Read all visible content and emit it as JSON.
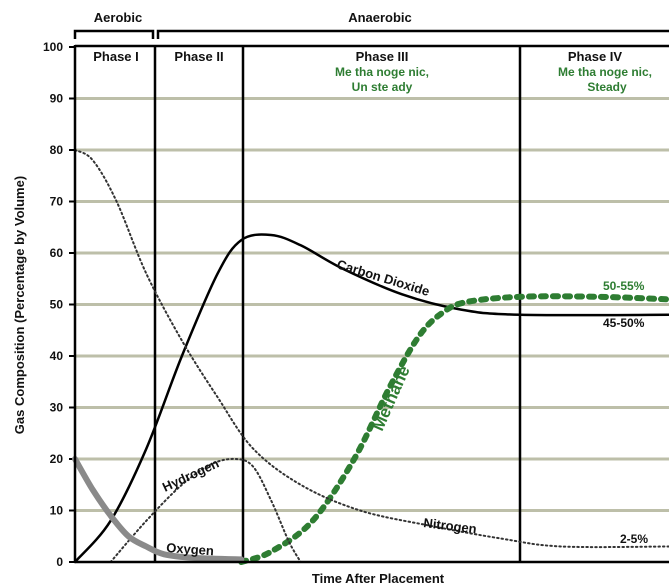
{
  "chart_data": {
    "type": "line",
    "ylabel": "Gas Composition (Percentage by Volume)",
    "xlabel": "Time After Placement",
    "ylim": [
      0,
      100
    ],
    "y_ticks": [
      "0",
      "10",
      "20",
      "30",
      "40",
      "50",
      "60",
      "70",
      "80",
      "90",
      "100"
    ],
    "grid": true,
    "brackets": [
      "Aerobic",
      "Anaerobic"
    ],
    "phases": [
      {
        "title": "Phase I",
        "sub": []
      },
      {
        "title": "Phase II",
        "sub": []
      },
      {
        "title": "Phase III",
        "sub": [
          "Me tha noge nic,",
          "Un ste ady"
        ]
      },
      {
        "title": "Phase IV",
        "sub": [
          "Me tha noge nic,",
          "Steady"
        ]
      }
    ],
    "series": [
      {
        "name": "Carbon Dioxide",
        "style": "solid",
        "color": "#000000",
        "points": [
          [
            0,
            0
          ],
          [
            6,
            8
          ],
          [
            12,
            22
          ],
          [
            18,
            40
          ],
          [
            24,
            56
          ],
          [
            28,
            62.5
          ],
          [
            33,
            63.5
          ],
          [
            38,
            61.5
          ],
          [
            45,
            57
          ],
          [
            55,
            52
          ],
          [
            65,
            49
          ],
          [
            75,
            48
          ],
          [
            100,
            48
          ]
        ]
      },
      {
        "name": "Methane",
        "style": "dashed",
        "color": "#2e7d32",
        "points": [
          [
            28,
            0
          ],
          [
            33,
            2
          ],
          [
            40,
            8
          ],
          [
            47,
            20
          ],
          [
            53,
            34
          ],
          [
            58,
            44
          ],
          [
            62,
            48.5
          ],
          [
            66,
            50.5
          ],
          [
            75,
            51.5
          ],
          [
            88,
            51.5
          ],
          [
            100,
            51
          ]
        ]
      },
      {
        "name": "Nitrogen",
        "style": "dotted",
        "color": "#333333",
        "points": [
          [
            0,
            80
          ],
          [
            3,
            78
          ],
          [
            7,
            70
          ],
          [
            12,
            56
          ],
          [
            18,
            43
          ],
          [
            24,
            32
          ],
          [
            30,
            22
          ],
          [
            38,
            15
          ],
          [
            48,
            10
          ],
          [
            60,
            7
          ],
          [
            72,
            4.5
          ],
          [
            82,
            3
          ],
          [
            100,
            3
          ]
        ]
      },
      {
        "name": "Hydrogen",
        "style": "dotted",
        "color": "#333333",
        "points": [
          [
            6,
            0
          ],
          [
            12,
            8
          ],
          [
            18,
            15
          ],
          [
            23,
            19
          ],
          [
            27,
            20
          ],
          [
            30,
            18.5
          ],
          [
            33,
            12
          ],
          [
            36,
            4
          ],
          [
            38,
            0
          ]
        ]
      },
      {
        "name": "Oxygen",
        "style": "solid",
        "color": "#8a8a8a",
        "points": [
          [
            0,
            20
          ],
          [
            3,
            14
          ],
          [
            6,
            9
          ],
          [
            9,
            5
          ],
          [
            12,
            3
          ],
          [
            15,
            1.5
          ],
          [
            20,
            0.8
          ],
          [
            28,
            0.5
          ]
        ]
      }
    ],
    "annotations": [
      {
        "text": "50-55%",
        "color": "green"
      },
      {
        "text": "45-50%",
        "color": "black"
      },
      {
        "text": "2-5%",
        "color": "black"
      }
    ]
  }
}
